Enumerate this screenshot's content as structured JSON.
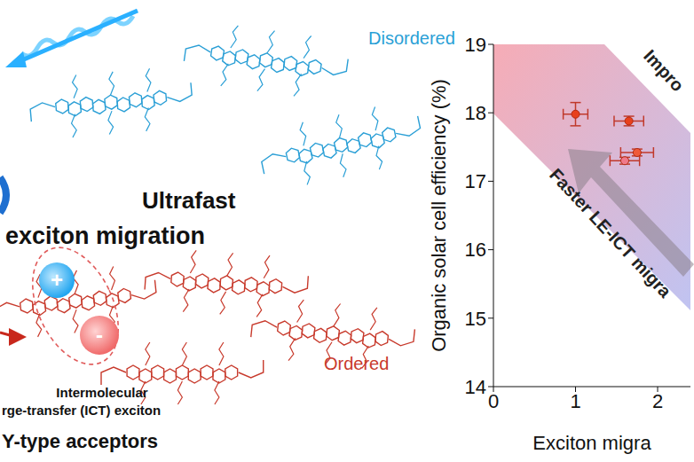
{
  "chart_data": {
    "type": "scatter",
    "x_label": "Exciton migra",
    "y_label": "Organic solar cell efficiency (%)",
    "x": [
      1.0,
      1.65,
      1.75,
      1.6
    ],
    "values": [
      17.98,
      17.88,
      17.42,
      17.3
    ],
    "x_error": [
      0.15,
      0.18,
      0.2,
      0.18
    ],
    "y_error": [
      0.17,
      0.07,
      0.05,
      0.05
    ],
    "colors": [
      "#e8401c",
      "#e8401c",
      "#ef5a3a",
      "#f07a8a"
    ],
    "marker": "circle",
    "xlim": [
      0,
      2.4
    ],
    "xticks": [
      0,
      1,
      2
    ],
    "ylim": [
      14,
      19
    ],
    "yticks": [
      14,
      15,
      16,
      17,
      18,
      19
    ],
    "annotations": [
      "Impro",
      "Faster LE-ICT migra"
    ]
  },
  "diagram": {
    "labels": {
      "disordered": "Disordered",
      "ultrafast": "Ultrafast",
      "exciton_migration": "exciton migration",
      "intermolecular": "Intermolecular",
      "charge_transfer": "rge-transfer (ICT) exciton",
      "ordered": "Ordered",
      "acceptors": "Y-type acceptors",
      "plus": "+",
      "minus": "-"
    }
  }
}
